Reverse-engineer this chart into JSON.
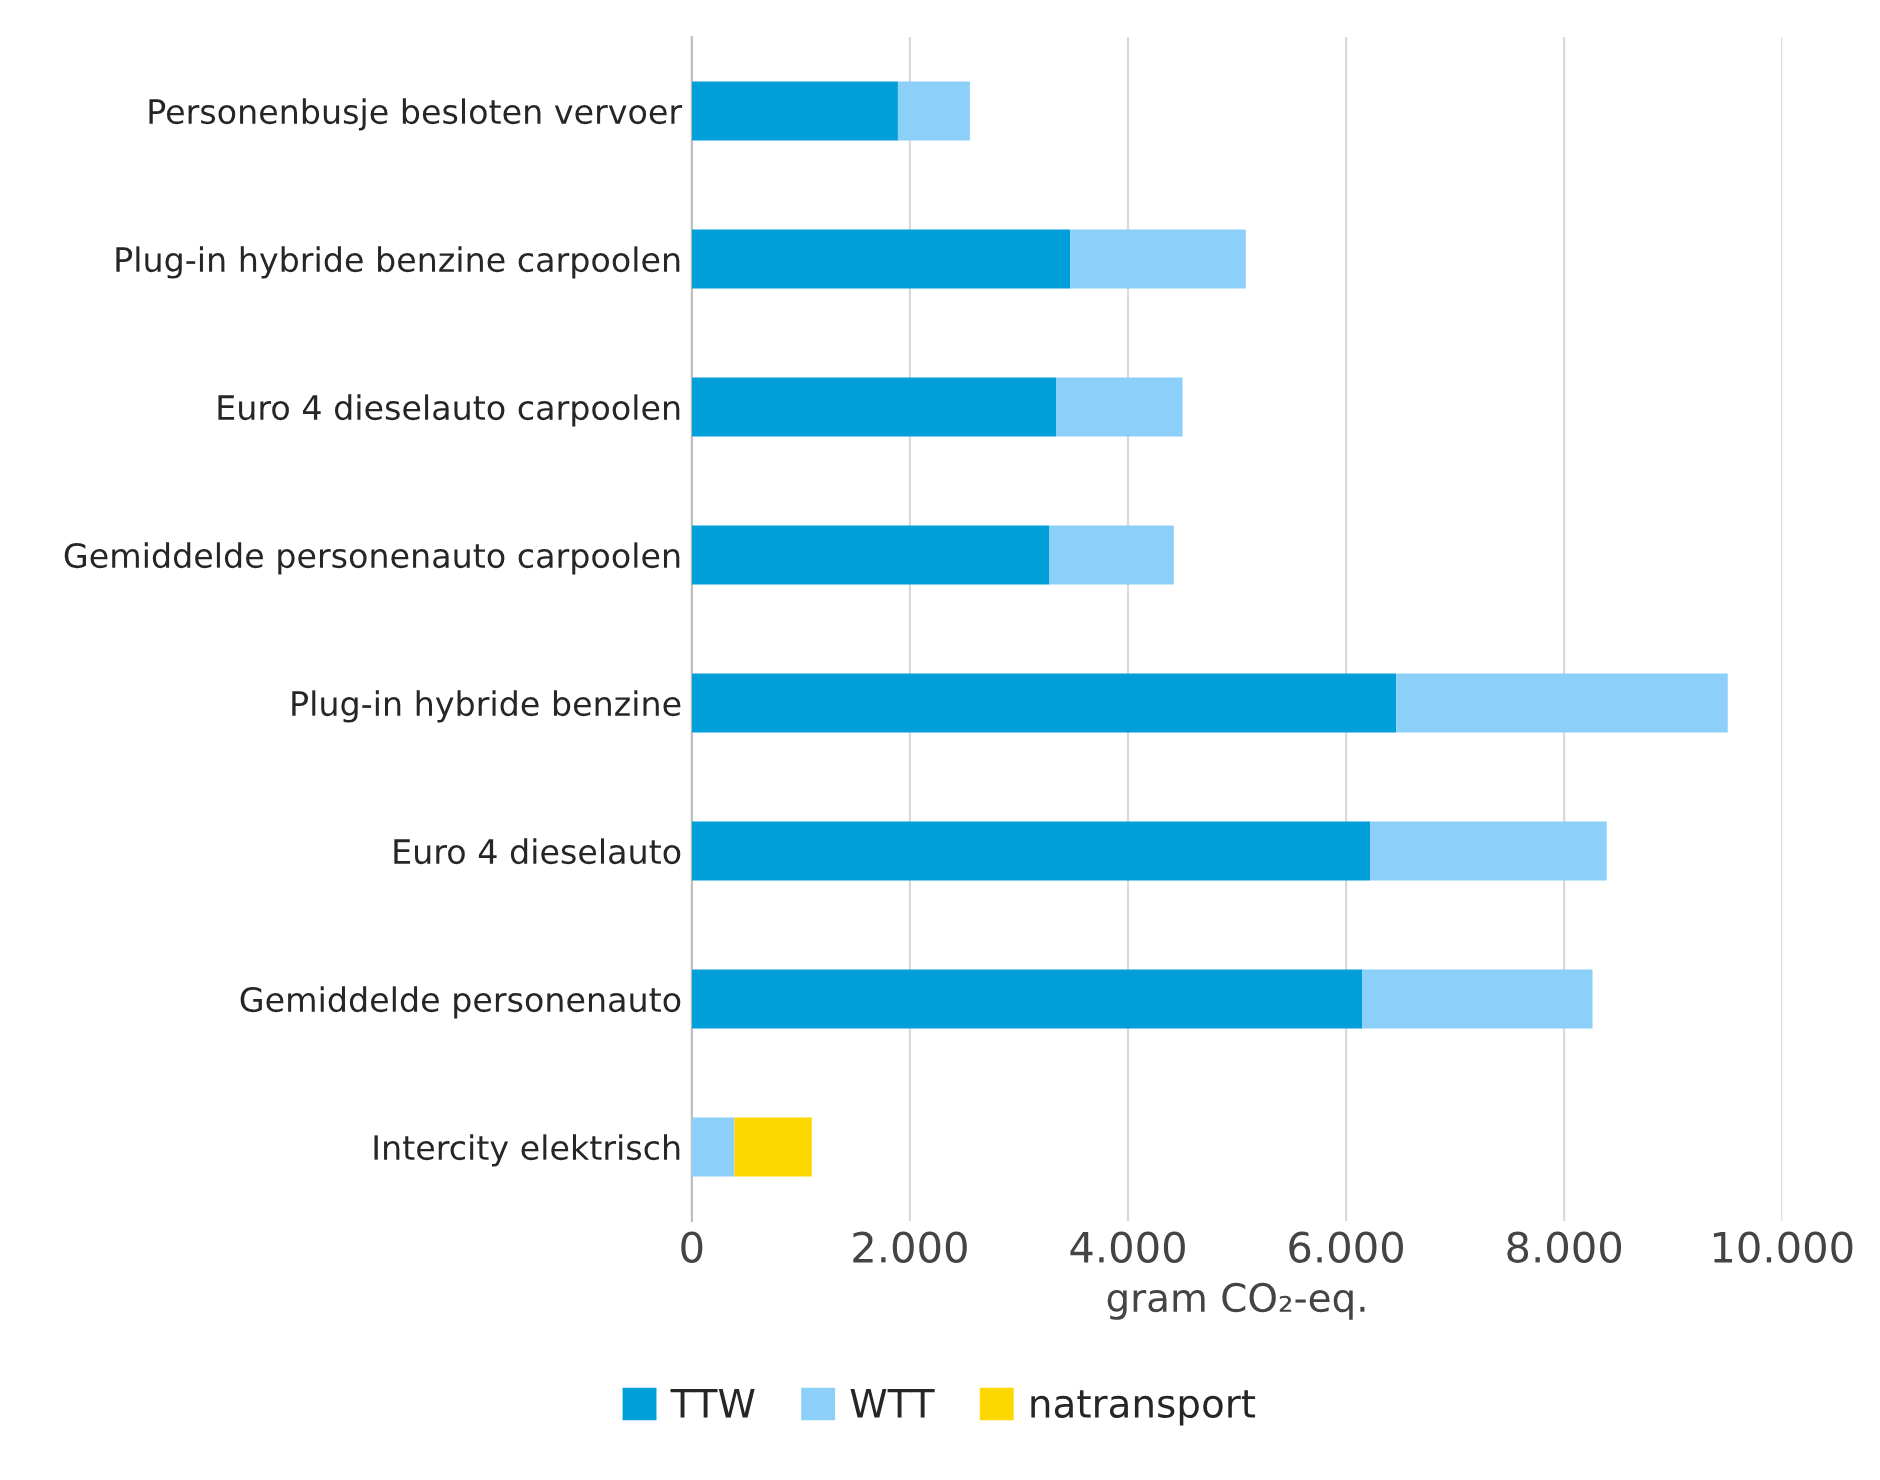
{
  "chart_data": {
    "type": "bar",
    "orientation": "horizontal",
    "stacked": true,
    "categories": [
      "Personenbusje besloten vervoer",
      "Plug-in hybride benzine carpoolen",
      "Euro 4 dieselauto carpoolen",
      "Gemiddelde personenauto carpoolen",
      "Plug-in hybride benzine",
      "Euro 4 dieselauto",
      "Gemiddelde personenauto",
      "Intercity elektrisch"
    ],
    "series": [
      {
        "name": "TTW",
        "color": "#009fda",
        "values": [
          1890,
          3470,
          3340,
          3280,
          6460,
          6220,
          6150,
          0
        ]
      },
      {
        "name": "WTT",
        "color": "#8ccff9",
        "values": [
          660,
          1610,
          1160,
          1140,
          3040,
          2170,
          2110,
          390
        ]
      },
      {
        "name": "natransport",
        "color": "#fdd800",
        "values": [
          0,
          0,
          0,
          0,
          0,
          0,
          0,
          710
        ]
      }
    ],
    "xlabel": "gram CO₂-eq.",
    "xlim": [
      0,
      10000
    ],
    "xticks": [
      0,
      {
        "value": 2000,
        "label": "2.000"
      },
      {
        "value": 4000,
        "label": "4.000"
      },
      {
        "value": 6000,
        "label": "6.000"
      },
      {
        "value": 8000,
        "label": "8.000"
      },
      {
        "value": 10000,
        "label": "10.000"
      }
    ],
    "grid": "x",
    "legend": "bottom"
  }
}
